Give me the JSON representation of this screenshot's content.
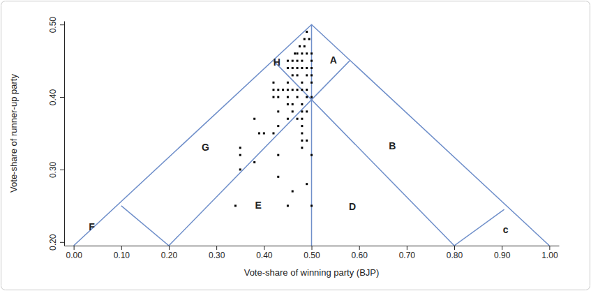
{
  "chart_data": {
    "type": "scatter",
    "x_label": "Vote-share of winning party (BJP)",
    "y_label": "Vote-share of runner-up party",
    "xlim": [
      -0.02,
      1.02
    ],
    "ylim": [
      0.195,
      0.505
    ],
    "xticks": [
      {
        "value": 0,
        "label": "0.00"
      },
      {
        "value": 0.1,
        "label": "0.10"
      },
      {
        "value": 0.2,
        "label": "0.20"
      },
      {
        "value": 0.3,
        "label": "0.30"
      },
      {
        "value": 0.4,
        "label": "0.40"
      },
      {
        "value": 0.5,
        "label": "0.50"
      },
      {
        "value": 0.6,
        "label": "0.60"
      },
      {
        "value": 0.7,
        "label": "0.70"
      },
      {
        "value": 0.8,
        "label": "0.80"
      },
      {
        "value": 0.9,
        "label": "0.90"
      },
      {
        "value": 1,
        "label": "1.00"
      }
    ],
    "yticks": [
      {
        "value": 0.2,
        "label": "0.20"
      },
      {
        "value": 0.3,
        "label": "0.30"
      },
      {
        "value": 0.4,
        "label": "0.40"
      },
      {
        "value": 0.5,
        "label": "0.50"
      }
    ],
    "grid": false,
    "color": "#000000",
    "marker": "square",
    "x": [
      0.49,
      0.485,
      0.495,
      0.475,
      0.485,
      0.465,
      0.47,
      0.48,
      0.49,
      0.5,
      0.45,
      0.46,
      0.47,
      0.48,
      0.5,
      0.45,
      0.46,
      0.47,
      0.48,
      0.49,
      0.5,
      0.46,
      0.47,
      0.49,
      0.5,
      0.42,
      0.45,
      0.48,
      0.5,
      0.42,
      0.43,
      0.44,
      0.45,
      0.46,
      0.47,
      0.48,
      0.49,
      0.42,
      0.43,
      0.45,
      0.47,
      0.49,
      0.5,
      0.45,
      0.46,
      0.48,
      0.43,
      0.46,
      0.48,
      0.49,
      0.38,
      0.45,
      0.47,
      0.48,
      0.43,
      0.48,
      0.39,
      0.4,
      0.42,
      0.48,
      0.48,
      0.49,
      0.35,
      0.48,
      0.35,
      0.43,
      0.5,
      0.38,
      0.35,
      0.43,
      0.49,
      0.46,
      0.34,
      0.45,
      0.5
    ],
    "values": [
      0.49,
      0.48,
      0.48,
      0.47,
      0.47,
      0.46,
      0.46,
      0.46,
      0.46,
      0.46,
      0.45,
      0.45,
      0.45,
      0.45,
      0.45,
      0.44,
      0.44,
      0.44,
      0.44,
      0.44,
      0.44,
      0.43,
      0.43,
      0.43,
      0.43,
      0.42,
      0.42,
      0.42,
      0.42,
      0.41,
      0.41,
      0.41,
      0.41,
      0.41,
      0.41,
      0.41,
      0.41,
      0.4,
      0.4,
      0.4,
      0.4,
      0.4,
      0.4,
      0.39,
      0.39,
      0.39,
      0.38,
      0.38,
      0.38,
      0.38,
      0.37,
      0.37,
      0.37,
      0.37,
      0.36,
      0.36,
      0.35,
      0.35,
      0.35,
      0.35,
      0.34,
      0.34,
      0.33,
      0.33,
      0.32,
      0.32,
      0.32,
      0.31,
      0.3,
      0.29,
      0.28,
      0.27,
      0.25,
      0.25,
      0.25
    ],
    "lines": [
      {
        "color": "#6f8fca",
        "x": [
          0,
          0.5,
          1
        ],
        "y": [
          0.195,
          0.5,
          0.195
        ]
      },
      {
        "color": "#6f8fca",
        "x": [
          0.5,
          0.5
        ],
        "y": [
          0.195,
          0.5
        ]
      },
      {
        "color": "#6f8fca",
        "x": [
          0.2,
          0.58
        ],
        "y": [
          0.195,
          0.45
        ]
      },
      {
        "color": "#6f8fca",
        "x": [
          0.8,
          0.42
        ],
        "y": [
          0.195,
          0.45
        ]
      },
      {
        "color": "#6f8fca",
        "x": [
          0.1,
          0.2
        ],
        "y": [
          0.25,
          0.195
        ]
      },
      {
        "color": "#6f8fca",
        "x": [
          0.905,
          0.8
        ],
        "y": [
          0.245,
          0.195
        ]
      }
    ],
    "annotations": [
      {
        "text": "A",
        "x": 0.546,
        "y": 0.451
      },
      {
        "text": "H",
        "x": 0.427,
        "y": 0.448
      },
      {
        "text": "G",
        "x": 0.277,
        "y": 0.331
      },
      {
        "text": "B",
        "x": 0.67,
        "y": 0.333
      },
      {
        "text": "E",
        "x": 0.388,
        "y": 0.251
      },
      {
        "text": "D",
        "x": 0.586,
        "y": 0.249
      },
      {
        "text": "F",
        "x": 0.038,
        "y": 0.221
      },
      {
        "text": "c",
        "x": 0.908,
        "y": 0.217
      }
    ]
  }
}
